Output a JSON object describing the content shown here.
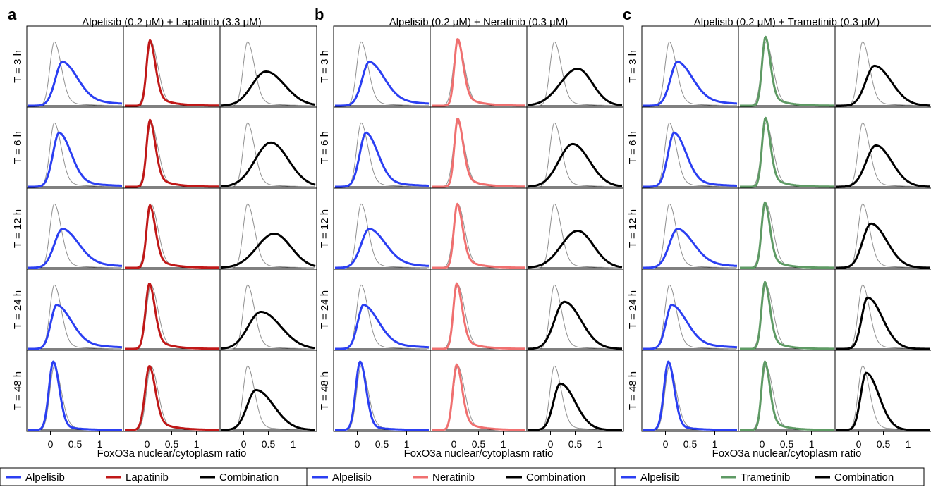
{
  "figure": {
    "xlabel": "FoxO3a nuclear/cytoplasm ratio",
    "row_labels": [
      "T = 3 h",
      "T = 6 h",
      "T = 12 h",
      "T = 24 h",
      "T = 48 h"
    ],
    "x_tick_labels": [
      "0",
      "0.5",
      "1"
    ]
  },
  "chart_data": [
    {
      "type": "line",
      "panel": "a",
      "title": "Alpelisib (0.2 μM) + Lapatinib (3.3 μM)",
      "xlabel": "FoxO3a nuclear/cytoplasm ratio",
      "x_ticks": [
        0,
        0.5,
        1
      ],
      "xlim": [
        -0.45,
        1.45
      ],
      "rows": [
        "T = 3 h",
        "T = 6 h",
        "T = 12 h",
        "T = 24 h",
        "T = 48 h"
      ],
      "columns": [
        "Alpelisib",
        "Lapatinib",
        "Combination"
      ],
      "series_colors": {
        "Alpelisib": "#2b3ff2",
        "Lapatinib": "#c01818",
        "Combination": "#000000",
        "control": "#909090"
      },
      "curves": {
        "Alpelisib": [
          {
            "peak": 0.25,
            "height": 0.62,
            "spread_left": 0.15,
            "spread_right": 0.3,
            "tail": 0.9
          },
          {
            "peak": 0.18,
            "height": 0.76,
            "spread_left": 0.13,
            "spread_right": 0.24,
            "tail": 0.6
          },
          {
            "peak": 0.25,
            "height": 0.55,
            "spread_left": 0.17,
            "spread_right": 0.32,
            "tail": 0.8
          },
          {
            "peak": 0.13,
            "height": 0.62,
            "spread_left": 0.12,
            "spread_right": 0.3,
            "tail": 0.8
          },
          {
            "peak": 0.06,
            "height": 0.96,
            "spread_left": 0.09,
            "spread_right": 0.12,
            "tail": 0.4
          }
        ],
        "Lapatinib": [
          {
            "peak": 0.06,
            "height": 0.92,
            "spread_left": 0.07,
            "spread_right": 0.11,
            "tail": 0.9
          },
          {
            "peak": 0.06,
            "height": 0.94,
            "spread_left": 0.07,
            "spread_right": 0.11,
            "tail": 0.9
          },
          {
            "peak": 0.06,
            "height": 0.88,
            "spread_left": 0.07,
            "spread_right": 0.11,
            "tail": 0.9
          },
          {
            "peak": 0.05,
            "height": 0.92,
            "spread_left": 0.08,
            "spread_right": 0.11,
            "tail": 0.9
          },
          {
            "peak": 0.05,
            "height": 0.9,
            "spread_left": 0.09,
            "spread_right": 0.12,
            "tail": 0.9
          }
        ],
        "Combination": [
          {
            "peak": 0.45,
            "height": 0.48,
            "spread_left": 0.28,
            "spread_right": 0.38,
            "tail": 0.0
          },
          {
            "peak": 0.55,
            "height": 0.62,
            "spread_left": 0.32,
            "spread_right": 0.36,
            "tail": 0.0
          },
          {
            "peak": 0.62,
            "height": 0.48,
            "spread_left": 0.35,
            "spread_right": 0.34,
            "tail": 0.0
          },
          {
            "peak": 0.35,
            "height": 0.52,
            "spread_left": 0.26,
            "spread_right": 0.4,
            "tail": 0.0
          },
          {
            "peak": 0.25,
            "height": 0.56,
            "spread_left": 0.18,
            "spread_right": 0.36,
            "tail": 0.0
          }
        ]
      },
      "control": {
        "peak": 0.08,
        "height": 0.9,
        "spread_left": 0.09,
        "spread_right": 0.14,
        "tail": 0.4
      }
    },
    {
      "type": "line",
      "panel": "b",
      "title": "Alpelisib (0.2 μM) + Neratinib (0.3 μM)",
      "xlabel": "FoxO3a nuclear/cytoplasm ratio",
      "x_ticks": [
        0,
        0.5,
        1
      ],
      "xlim": [
        -0.45,
        1.45
      ],
      "rows": [
        "T = 3 h",
        "T = 6 h",
        "T = 12 h",
        "T = 24 h",
        "T = 48 h"
      ],
      "columns": [
        "Alpelisib",
        "Neratinib",
        "Combination"
      ],
      "series_colors": {
        "Alpelisib": "#2b3ff2",
        "Neratinib": "#f07070",
        "Combination": "#000000",
        "control": "#909090"
      },
      "curves": {
        "Alpelisib": [
          {
            "peak": 0.25,
            "height": 0.62,
            "spread_left": 0.15,
            "spread_right": 0.3,
            "tail": 0.9
          },
          {
            "peak": 0.18,
            "height": 0.76,
            "spread_left": 0.13,
            "spread_right": 0.24,
            "tail": 0.6
          },
          {
            "peak": 0.25,
            "height": 0.55,
            "spread_left": 0.17,
            "spread_right": 0.32,
            "tail": 0.8
          },
          {
            "peak": 0.13,
            "height": 0.62,
            "spread_left": 0.12,
            "spread_right": 0.3,
            "tail": 0.8
          },
          {
            "peak": 0.06,
            "height": 0.96,
            "spread_left": 0.09,
            "spread_right": 0.12,
            "tail": 0.4
          }
        ],
        "Neratinib": [
          {
            "peak": 0.08,
            "height": 0.94,
            "spread_left": 0.07,
            "spread_right": 0.11,
            "tail": 0.9
          },
          {
            "peak": 0.08,
            "height": 0.96,
            "spread_left": 0.07,
            "spread_right": 0.11,
            "tail": 0.9
          },
          {
            "peak": 0.07,
            "height": 0.9,
            "spread_left": 0.07,
            "spread_right": 0.11,
            "tail": 0.9
          },
          {
            "peak": 0.06,
            "height": 0.92,
            "spread_left": 0.07,
            "spread_right": 0.11,
            "tail": 0.9
          },
          {
            "peak": 0.06,
            "height": 0.92,
            "spread_left": 0.08,
            "spread_right": 0.11,
            "tail": 0.9
          }
        ],
        "Combination": [
          {
            "peak": 0.55,
            "height": 0.52,
            "spread_left": 0.35,
            "spread_right": 0.3,
            "tail": 0.0
          },
          {
            "peak": 0.45,
            "height": 0.6,
            "spread_left": 0.28,
            "spread_right": 0.34,
            "tail": 0.0
          },
          {
            "peak": 0.55,
            "height": 0.52,
            "spread_left": 0.33,
            "spread_right": 0.32,
            "tail": 0.0
          },
          {
            "peak": 0.28,
            "height": 0.66,
            "spread_left": 0.2,
            "spread_right": 0.34,
            "tail": 0.0
          },
          {
            "peak": 0.2,
            "height": 0.65,
            "spread_left": 0.14,
            "spread_right": 0.3,
            "tail": 0.0
          }
        ]
      },
      "control": {
        "peak": 0.08,
        "height": 0.9,
        "spread_left": 0.09,
        "spread_right": 0.14,
        "tail": 0.4
      }
    },
    {
      "type": "line",
      "panel": "c",
      "title": "Alpelisib (0.2 μM) + Trametinib (0.3 μM)",
      "xlabel": "FoxO3a nuclear/cytoplasm ratio",
      "x_ticks": [
        0,
        0.5,
        1
      ],
      "xlim": [
        -0.45,
        1.45
      ],
      "rows": [
        "T = 3 h",
        "T = 6 h",
        "T = 12 h",
        "T = 24 h",
        "T = 48 h"
      ],
      "columns": [
        "Alpelisib",
        "Trametinib",
        "Combination"
      ],
      "series_colors": {
        "Alpelisib": "#2b3ff2",
        "Trametinib": "#5e9a64",
        "Combination": "#000000",
        "control": "#909090"
      },
      "curves": {
        "Alpelisib": [
          {
            "peak": 0.25,
            "height": 0.62,
            "spread_left": 0.15,
            "spread_right": 0.3,
            "tail": 0.9
          },
          {
            "peak": 0.18,
            "height": 0.76,
            "spread_left": 0.13,
            "spread_right": 0.24,
            "tail": 0.6
          },
          {
            "peak": 0.25,
            "height": 0.55,
            "spread_left": 0.17,
            "spread_right": 0.32,
            "tail": 0.8
          },
          {
            "peak": 0.13,
            "height": 0.62,
            "spread_left": 0.12,
            "spread_right": 0.3,
            "tail": 0.8
          },
          {
            "peak": 0.06,
            "height": 0.96,
            "spread_left": 0.09,
            "spread_right": 0.12,
            "tail": 0.4
          }
        ],
        "Trametinib": [
          {
            "peak": 0.07,
            "height": 0.97,
            "spread_left": 0.07,
            "spread_right": 0.1,
            "tail": 0.9
          },
          {
            "peak": 0.07,
            "height": 0.97,
            "spread_left": 0.07,
            "spread_right": 0.1,
            "tail": 0.9
          },
          {
            "peak": 0.06,
            "height": 0.92,
            "spread_left": 0.07,
            "spread_right": 0.1,
            "tail": 0.9
          },
          {
            "peak": 0.06,
            "height": 0.94,
            "spread_left": 0.07,
            "spread_right": 0.1,
            "tail": 0.9
          },
          {
            "peak": 0.06,
            "height": 0.96,
            "spread_left": 0.07,
            "spread_right": 0.1,
            "tail": 0.9
          }
        ],
        "Combination": [
          {
            "peak": 0.32,
            "height": 0.56,
            "spread_left": 0.18,
            "spread_right": 0.34,
            "tail": 0.0
          },
          {
            "peak": 0.35,
            "height": 0.58,
            "spread_left": 0.2,
            "spread_right": 0.32,
            "tail": 0.0
          },
          {
            "peak": 0.25,
            "height": 0.62,
            "spread_left": 0.17,
            "spread_right": 0.32,
            "tail": 0.0
          },
          {
            "peak": 0.18,
            "height": 0.72,
            "spread_left": 0.12,
            "spread_right": 0.3,
            "tail": 0.0
          },
          {
            "peak": 0.15,
            "height": 0.8,
            "spread_left": 0.11,
            "spread_right": 0.26,
            "tail": 0.0
          }
        ]
      },
      "control": {
        "peak": 0.08,
        "height": 0.9,
        "spread_left": 0.09,
        "spread_right": 0.14,
        "tail": 0.4
      }
    }
  ]
}
